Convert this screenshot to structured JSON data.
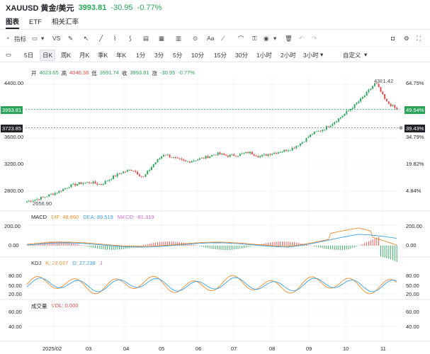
{
  "header": {
    "symbol": "XAUUSD 黄金/美元",
    "price": "3993.81",
    "change": "-30.95",
    "change_pct": "-0.77%"
  },
  "tabs": [
    "图表",
    "ETF",
    "相关汇率"
  ],
  "toolbar": {
    "indicators_label": "指标",
    "vs_label": "VS",
    "text_tool_label": "Aa"
  },
  "timeframes": [
    "5日",
    "日K",
    "周K",
    "月K",
    "季K",
    "年K",
    "1分",
    "3分",
    "5分",
    "10分",
    "15分",
    "30分",
    "1小时",
    "2小时",
    "3小时",
    "自定义"
  ],
  "timeframe_selected": "日K",
  "ohlc": {
    "open_label": "开",
    "open": "4023.65",
    "high_label": "高",
    "high": "4046.38",
    "low_label": "低",
    "low": "3991.74",
    "close_label": "收",
    "close": "3993.81",
    "change_label": "涨",
    "change": "-30.95",
    "change_pct": "-0.77%"
  },
  "price_axis": {
    "ticks": [
      "4400.00",
      "3600.00",
      "3200.00",
      "2800.00"
    ],
    "current_tag": "3993.81",
    "alert_tag": "3723.85",
    "pct_ticks": [
      "64.75%",
      "34.79%",
      "19.82%",
      "4.84%"
    ],
    "current_pct": "49.54%",
    "alert_pct": "39.43%",
    "high_mark": "4381.42",
    "low_mark": "2656.90"
  },
  "macd": {
    "name": "MACD",
    "dif": "DIF: 48.860",
    "dea": "DEA: 89.519",
    "macd": "MACD: -81.319",
    "ticks": [
      "200.00",
      "0.00"
    ]
  },
  "kdj": {
    "name": "KDJ",
    "k": "K: 22.017",
    "d": "D: 27.338",
    "j": "J",
    "ticks": [
      "80.00",
      "50.00",
      "20.00"
    ]
  },
  "volume": {
    "name": "成交量",
    "vol": "VOL: 0.000",
    "ticks": [
      "60.00",
      "40.00"
    ]
  },
  "x_axis": [
    "2025/02",
    "03",
    "04",
    "05",
    "06",
    "07",
    "08",
    "09",
    "10",
    "11"
  ],
  "colors": {
    "up": "#2ca55a",
    "down": "#e24a4a",
    "dif": "#f08c2e",
    "dea": "#3aa0e0",
    "macd": "#c86ad6"
  },
  "chart_data": {
    "type": "candlestick",
    "ylim": [
      2600,
      4450
    ],
    "close_path": [
      2656.9,
      2690,
      2740,
      2800,
      2880,
      2920,
      2935,
      2900,
      3000,
      3080,
      3120,
      3000,
      3200,
      3350,
      3280,
      3230,
      3260,
      3300,
      3350,
      3320,
      3330,
      3370,
      3310,
      3350,
      3380,
      3420,
      3510,
      3640,
      3700,
      3800,
      3920,
      4050,
      4200,
      4381.42,
      4100,
      3993.81
    ]
  }
}
